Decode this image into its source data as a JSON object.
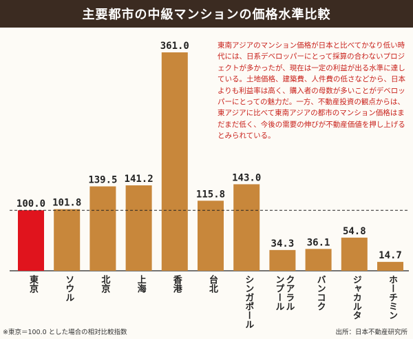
{
  "header": {
    "title": "主要都市の中級マンションの価格水準比較"
  },
  "annotation": "東南アジアのマンション価格が日本と比べてかなり低い時代には、日系デベロッパーにとって採算の合わないプロジェクトが多かったが、現在は一定の利益が出る水準に達している。土地価格、建築費、人件費の低さなどから、日本よりも利益率は高く、購入者の母数が多いことがデベロッパーにとっての魅力だ。一方、不動産投資の観点からは、東アジアに比べて東南アジアの都市のマンション価格はまだまだ低く、今後の需要の伸びが不動産価値を押し上げるとみられている。",
  "footnote": "※東京＝100.0 とした場合の相対比較指数",
  "source": "出所：日本不動産研究所",
  "colors": {
    "highlight": "#e0141d",
    "bar": "#c8873b",
    "title_bg": "#3b2b21",
    "annotation": "#c8201a"
  },
  "chart_data": {
    "type": "bar",
    "title": "主要都市の中級マンションの価格水準比較",
    "categories": [
      "東京",
      "ソウル",
      "北京",
      "上海",
      "香港",
      "台北",
      "シンガポール",
      "クアラルンプール",
      "バンコク",
      "ジャカルタ",
      "ホーチミン"
    ],
    "label_lines": [
      [
        "東京"
      ],
      [
        "ソウル"
      ],
      [
        "北京"
      ],
      [
        "上海"
      ],
      [
        "香港"
      ],
      [
        "台北"
      ],
      [
        "シンガポール"
      ],
      [
        "クアラル",
        "ンプール"
      ],
      [
        "バンコク"
      ],
      [
        "ジャカルタ"
      ],
      [
        "ホーチミン"
      ]
    ],
    "values": [
      100.0,
      101.8,
      139.5,
      141.2,
      361.0,
      115.8,
      143.0,
      34.3,
      36.1,
      54.8,
      14.7
    ],
    "value_labels": [
      "100.0",
      "101.8",
      "139.5",
      "141.2",
      "361.0",
      "115.8",
      "143.0",
      "34.3",
      "36.1",
      "54.8",
      "14.7"
    ],
    "highlight_index": 0,
    "reference_line": 100.0,
    "ylim": [
      0,
      361.0
    ],
    "xlabel": "",
    "ylabel": ""
  }
}
